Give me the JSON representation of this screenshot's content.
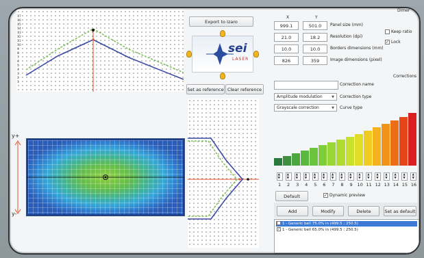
{
  "header": {
    "export_label": "Export to Izaro",
    "dimensions_label": "Dimer"
  },
  "logo": {
    "brand": "sei",
    "sub": "LASER"
  },
  "reference": {
    "set_label": "Set as reference",
    "clear_label": "Clear reference"
  },
  "panel": {
    "col_x": "X",
    "col_y": "Y",
    "rows": [
      {
        "x": "999.1",
        "y": "501.0",
        "label": "Panel size (mm)"
      },
      {
        "x": "21.0",
        "y": "18.2",
        "label": "Resolution (dpi)"
      },
      {
        "x": "10.0",
        "y": "10.0",
        "label": "Borders dimensions (mm)"
      },
      {
        "x": "826",
        "y": "359",
        "label": "Image dimensions (pixel)"
      }
    ],
    "keep_ratio_label": "Keep ratio",
    "lock_label": "Lock"
  },
  "corrections": {
    "section_label": "Corrections",
    "name_value": "",
    "name_label": "Correction name",
    "type_value": "Amplitude modulation",
    "type_label": "Correction type",
    "curve_value": "Grayscale correction",
    "curve_label": "Curve type"
  },
  "bars": {
    "values": [
      0.14,
      0.18,
      0.23,
      0.28,
      0.33,
      0.38,
      0.43,
      0.48,
      0.53,
      0.58,
      0.64,
      0.7,
      0.76,
      0.82,
      0.89,
      0.96
    ],
    "colors": [
      "#2a7a3d",
      "#3f8f3e",
      "#4ea640",
      "#5bb83e",
      "#6cc43c",
      "#7fcd3a",
      "#98d636",
      "#b0dc32",
      "#c9e02c",
      "#e1dd27",
      "#f0cc22",
      "#f3b21e",
      "#f19219",
      "#ec6f17",
      "#e54617",
      "#d91f1f"
    ],
    "labels": [
      "1",
      "2",
      "3",
      "4",
      "5",
      "6",
      "7",
      "8",
      "9",
      "10",
      "11",
      "12",
      "13",
      "14",
      "15",
      "16"
    ]
  },
  "controls": {
    "default_label": "Default",
    "dynamic_preview_label": "Dynamic preview",
    "add_label": "Add",
    "modify_label": "Modify",
    "delete_label": "Delete",
    "set_default_label": "Set as default"
  },
  "list_items": [
    {
      "label": "1 - Generic bell 75.0% in (499.5 ; 250.5)",
      "checked": false,
      "selected": true
    },
    {
      "label": "1 - Generic bell 65.0% in (499.5 ; 250.5)",
      "checked": true,
      "selected": false
    }
  ],
  "axis": {
    "y_plus": "y+",
    "y_minus": "y-"
  },
  "top_plot_ticks": [
    "17",
    "16",
    "15",
    "14",
    "13",
    "12",
    "11",
    "10",
    "9",
    "8",
    "7",
    "6",
    "5",
    "4",
    "3",
    "2",
    "1"
  ]
}
